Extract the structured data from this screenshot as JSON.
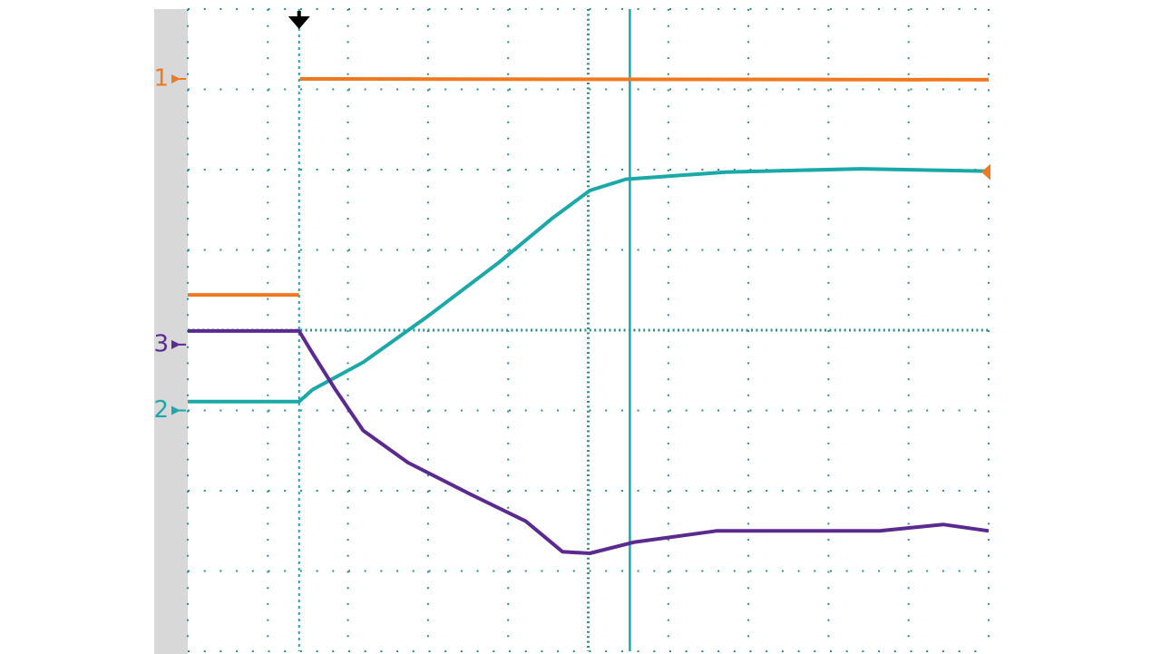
{
  "chart_data": {
    "type": "line",
    "xlim": [
      0,
      10
    ],
    "ylim": [
      0,
      8
    ],
    "xticks": [
      0,
      1,
      2,
      3,
      4,
      5,
      6,
      7,
      8,
      9,
      10
    ],
    "yticks": [
      0,
      1,
      2,
      3,
      4,
      5,
      6,
      7,
      8
    ],
    "grid": true,
    "trigger_x": 1.39,
    "trigger_level": 5.97,
    "trigger_color": "#f07820",
    "cursor_x": 5.52,
    "cursor_color": "#1aa8a8",
    "series": [
      {
        "name": "1",
        "color": "#f07820",
        "marker": 7.13,
        "x": [
          0,
          1.39,
          1.4,
          1.4,
          10
        ],
        "values": [
          4.44,
          4.44,
          null,
          7.13,
          7.12
        ]
      },
      {
        "name": "2",
        "color": "#1aa8a8",
        "marker": 3.0,
        "x": [
          0,
          1.39,
          1.56,
          2.19,
          2.98,
          3.88,
          4.56,
          5.02,
          5.47,
          6.72,
          8.41,
          10
        ],
        "values": [
          3.11,
          3.11,
          3.26,
          3.6,
          4.16,
          4.84,
          5.4,
          5.74,
          5.88,
          5.97,
          6.01,
          5.98
        ]
      },
      {
        "name": "3",
        "color": "#5a2a90",
        "marker": 3.82,
        "x": [
          0,
          1.39,
          1.56,
          1.85,
          2.19,
          2.75,
          3.54,
          4.22,
          4.68,
          5.02,
          5.58,
          6.6,
          7.85,
          8.64,
          9.43,
          10
        ],
        "values": [
          3.99,
          3.99,
          3.71,
          3.25,
          2.75,
          2.35,
          1.95,
          1.62,
          1.24,
          1.22,
          1.36,
          1.5,
          1.5,
          1.5,
          1.58,
          1.5
        ]
      }
    ]
  }
}
